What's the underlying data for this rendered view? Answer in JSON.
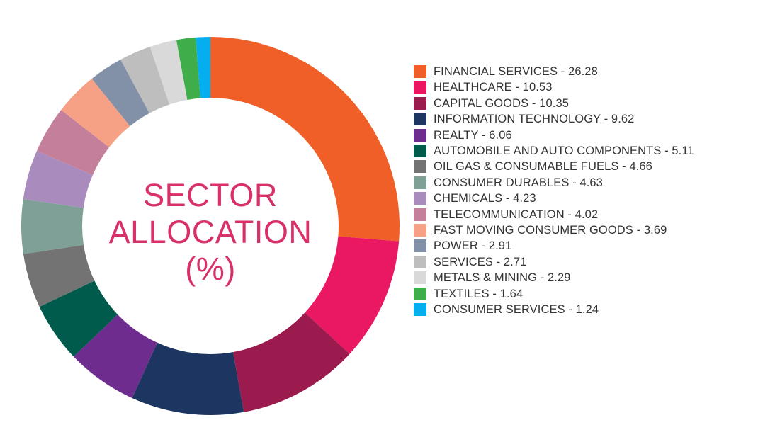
{
  "chart_data": {
    "type": "pie",
    "variant": "donut",
    "title": "SECTOR ALLOCATION (%)",
    "title_lines": [
      "SECTOR",
      "ALLOCATION",
      "(%)"
    ],
    "start_angle": "12 o'clock",
    "direction": "clockwise",
    "legend_position": "right",
    "categories": [
      "FINANCIAL SERVICES",
      "HEALTHCARE",
      "CAPITAL GOODS",
      "INFORMATION TECHNOLOGY",
      "REALTY",
      "AUTOMOBILE AND AUTO COMPONENTS",
      "OIL GAS & CONSUMABLE FUELS",
      "CONSUMER DURABLES",
      "CHEMICALS",
      "TELECOMMUNICATION",
      "FAST MOVING CONSUMER GOODS",
      "POWER",
      "SERVICES",
      "METALS & MINING",
      "TEXTILES",
      "CONSUMER SERVICES"
    ],
    "values": [
      26.28,
      10.53,
      10.35,
      9.62,
      6.06,
      5.11,
      4.66,
      4.63,
      4.23,
      4.02,
      3.69,
      2.91,
      2.71,
      2.29,
      1.64,
      1.24
    ],
    "colors": [
      "#f05f28",
      "#ea1763",
      "#9b1b4f",
      "#1c3661",
      "#6f2c8f",
      "#005b4c",
      "#737373",
      "#7ea096",
      "#a98bbe",
      "#c4809a",
      "#f6a185",
      "#8290a8",
      "#bebebe",
      "#d9d9d9",
      "#3fad4a",
      "#04aeef"
    ],
    "legend_labels": [
      "FINANCIAL SERVICES - 26.28",
      "HEALTHCARE - 10.53",
      "CAPITAL GOODS - 10.35",
      "INFORMATION TECHNOLOGY - 9.62",
      "REALTY - 6.06",
      "AUTOMOBILE AND AUTO COMPONENTS - 5.11",
      "OIL GAS & CONSUMABLE FUELS - 4.66",
      "CONSUMER DURABLES - 4.63",
      "CHEMICALS - 4.23",
      "TELECOMMUNICATION - 4.02",
      "FAST MOVING CONSUMER GOODS - 3.69",
      "POWER - 2.91",
      "SERVICES - 2.71",
      "METALS & MINING - 2.29",
      "TEXTILES - 1.64",
      "CONSUMER SERVICES - 1.24"
    ]
  }
}
